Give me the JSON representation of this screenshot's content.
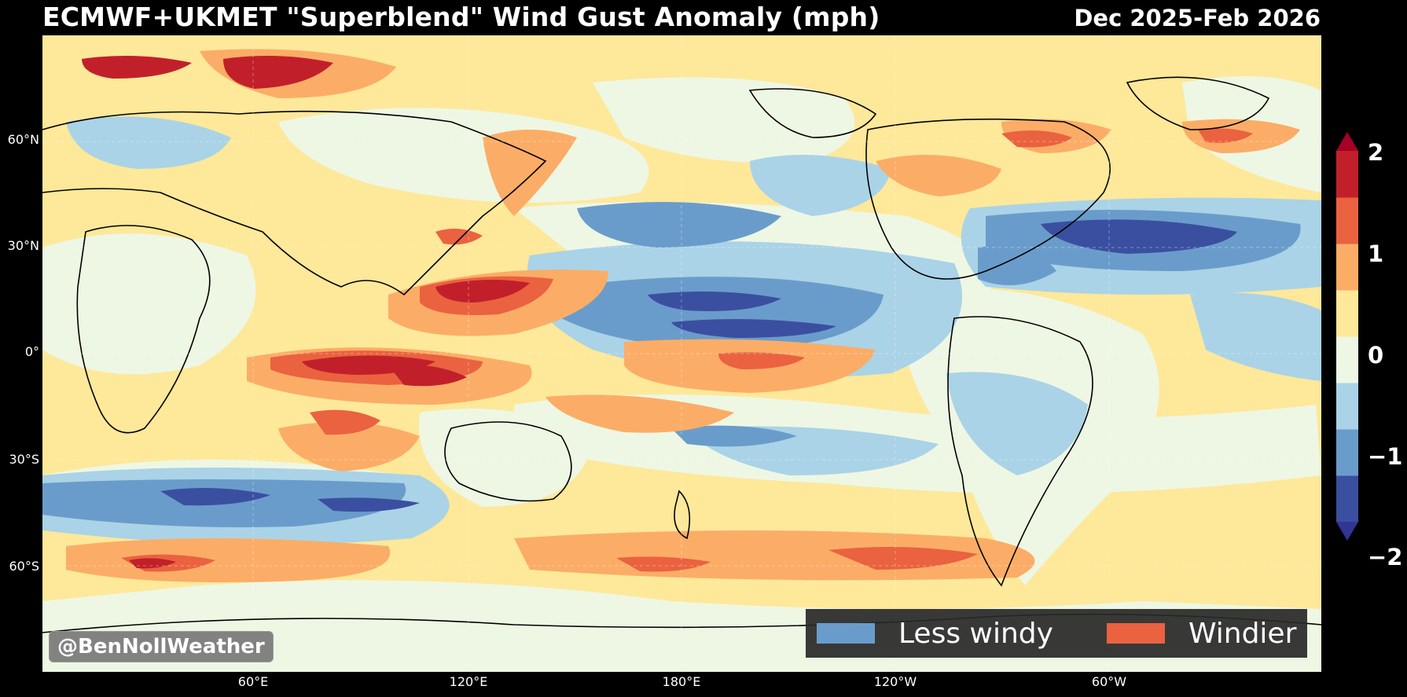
{
  "title": "ECMWF+UKMET \"Superblend\" Wind Gust Anomaly (mph)",
  "period": "Dec 2025-Feb 2026",
  "lat_labels": [
    "60°N",
    "30°N",
    "0°",
    "30°S",
    "60°S"
  ],
  "lon_labels": [
    "60°E",
    "120°E",
    "180°E",
    "120°W",
    "60°W"
  ],
  "colorbar": {
    "tick_labels": [
      "2",
      "1",
      "0",
      "−1",
      "−2"
    ],
    "levels": [
      -2,
      -1.5,
      -1,
      -0.5,
      0,
      0.5,
      1,
      1.5,
      2
    ],
    "colors": [
      "#3b4fa0",
      "#6a9ccb",
      "#aad3e7",
      "#eef7e4",
      "#fee89a",
      "#fbad67",
      "#ea623f",
      "#c1202a"
    ],
    "extend_low_color": "#313695",
    "extend_high_color": "#a50026"
  },
  "legend": {
    "items": [
      {
        "label": "Less windy",
        "color": "#6a9ccb"
      },
      {
        "label": "Windier",
        "color": "#ea623f"
      }
    ]
  },
  "watermark": "@BenNollWeather",
  "map": {
    "projection": "Equirectangular, centered 180°",
    "background_anomaly_color": "#fee89a",
    "land_outline_color": "#000000",
    "grid": true
  }
}
